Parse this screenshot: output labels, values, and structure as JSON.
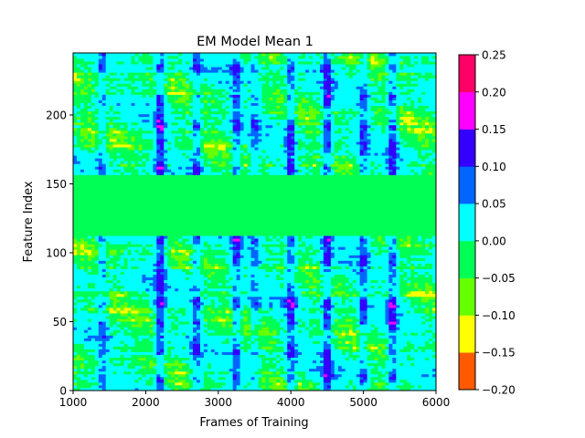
{
  "chart_data": {
    "type": "heatmap",
    "title": "EM Model Mean 1",
    "xlabel": "Frames of Training",
    "ylabel": "Feature Index",
    "xlim": [
      1000,
      6000
    ],
    "ylim": [
      0,
      245
    ],
    "xticks": [
      1000,
      2000,
      3000,
      4000,
      5000,
      6000
    ],
    "yticks": [
      0,
      50,
      100,
      150,
      200
    ],
    "colorbar": {
      "levels": [
        -0.2,
        -0.15,
        -0.1,
        -0.05,
        0.0,
        0.05,
        0.1,
        0.15,
        0.2,
        0.25
      ],
      "tick_labels": [
        "−0.20",
        "−0.15",
        "−0.10",
        "−0.05",
        "0.00",
        "0.05",
        "0.10",
        "0.15",
        "0.20",
        "0.25"
      ],
      "colors": [
        "#ff5a00",
        "#ffff00",
        "#66ff00",
        "#00ff55",
        "#00ffff",
        "#0066ff",
        "#3300ff",
        "#ff00ff",
        "#ff0066"
      ]
    },
    "uniform_band": {
      "feature_index_range": [
        113,
        157
      ],
      "level_index": 3,
      "value_range": [
        -0.05,
        0.0
      ]
    },
    "hot_columns": [
      {
        "frame": 1400,
        "strength": 0.55
      },
      {
        "frame": 2200,
        "strength": 1.0
      },
      {
        "frame": 2700,
        "strength": 0.7
      },
      {
        "frame": 3250,
        "strength": 0.75
      },
      {
        "frame": 3500,
        "strength": 0.5
      },
      {
        "frame": 4000,
        "strength": 0.85
      },
      {
        "frame": 4500,
        "strength": 0.95
      },
      {
        "frame": 5000,
        "strength": 0.7
      },
      {
        "frame": 5400,
        "strength": 0.85
      }
    ],
    "hot_features": [
      {
        "feature": 8,
        "strength": 0.6
      },
      {
        "feature": 30,
        "strength": 0.5
      },
      {
        "feature": 50,
        "strength": 0.7
      },
      {
        "feature": 62,
        "strength": 0.8
      },
      {
        "feature": 95,
        "strength": 0.6
      },
      {
        "feature": 108,
        "strength": 0.6
      },
      {
        "feature": 162,
        "strength": 0.7
      },
      {
        "feature": 178,
        "strength": 0.6
      },
      {
        "feature": 192,
        "strength": 0.8
      },
      {
        "feature": 212,
        "strength": 0.5
      },
      {
        "feature": 235,
        "strength": 0.5
      }
    ]
  }
}
